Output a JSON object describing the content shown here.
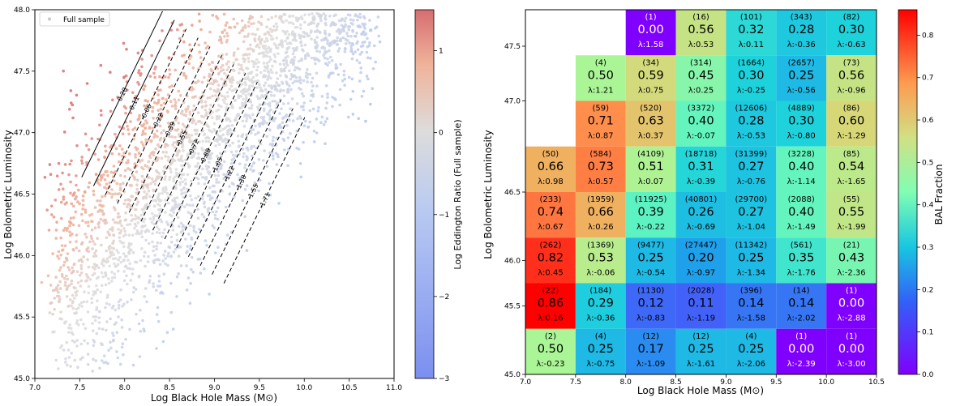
{
  "chart_data": [
    {
      "type": "scatter",
      "title": "",
      "xlabel": "Log Black Hole Mass (M⊙)",
      "ylabel": "Log Bolometric Luminosity",
      "xlim": [
        7.0,
        11.0
      ],
      "ylim": [
        45.0,
        48.0
      ],
      "xticks": [
        "7.0",
        "7.5",
        "8.0",
        "8.5",
        "9.0",
        "9.5",
        "10.0",
        "10.5",
        "11.0"
      ],
      "yticks": [
        "45.0",
        "45.5",
        "46.0",
        "46.5",
        "47.0",
        "47.5",
        "48.0"
      ],
      "legend": {
        "label": "Full sample",
        "position": "top-left"
      },
      "colorbar": {
        "label": "Log Eddington Ratio (Full sample)",
        "range": [
          -3,
          1.5
        ],
        "ticks": [
          "1",
          "0",
          "−1",
          "−2",
          "−3"
        ],
        "cmap": "coolwarm"
      },
      "contour_labels": [
        "0.28",
        "0.11",
        "-0.06",
        "-0.22",
        "-0.39",
        "-0.55",
        "-0.72",
        "-0.88",
        "-1.05",
        "-1.22",
        "-1.38",
        "-1.55",
        "-1.71"
      ]
    },
    {
      "type": "heatmap",
      "title": "",
      "xlabel": "Log Black Hole Mass (M⊙)",
      "ylabel": "Log Bolometric Luminosity",
      "xlim": [
        7.0,
        10.5
      ],
      "ylim": [
        45.0,
        47.75
      ],
      "xticks": [
        "7.0",
        "7.5",
        "8.0",
        "8.5",
        "9.0",
        "9.5",
        "10.0",
        "10.5"
      ],
      "yticks": [
        "45.0",
        "45.5",
        "46.0",
        "46.5",
        "47.0",
        "47.5"
      ],
      "colorbar": {
        "label": "BAL Fraction",
        "range": [
          0,
          0.86
        ],
        "ticks": [
          "0.0",
          "0.1",
          "0.2",
          "0.3",
          "0.4",
          "0.5",
          "0.6",
          "0.7",
          "0.8"
        ],
        "cmap": "rainbow"
      },
      "cells": [
        {
          "x": 8.0,
          "y": 47.5,
          "n": "(1)",
          "frac": "0.00",
          "lam": "λ:1.58"
        },
        {
          "x": 8.5,
          "y": 47.5,
          "n": "(16)",
          "frac": "0.56",
          "lam": "λ:0.53"
        },
        {
          "x": 9.0,
          "y": 47.5,
          "n": "(101)",
          "frac": "0.32",
          "lam": "λ:0.11"
        },
        {
          "x": 9.5,
          "y": 47.5,
          "n": "(343)",
          "frac": "0.28",
          "lam": "λ:-0.36"
        },
        {
          "x": 10.0,
          "y": 47.5,
          "n": "(82)",
          "frac": "0.30",
          "lam": "λ:-0.63"
        },
        {
          "x": 7.5,
          "y": 47.25,
          "n": "(4)",
          "frac": "0.50",
          "lam": "λ:1.21"
        },
        {
          "x": 8.0,
          "y": 47.25,
          "n": "(34)",
          "frac": "0.59",
          "lam": "λ:0.75"
        },
        {
          "x": 8.5,
          "y": 47.25,
          "n": "(314)",
          "frac": "0.45",
          "lam": "λ:0.25"
        },
        {
          "x": 9.0,
          "y": 47.25,
          "n": "(1664)",
          "frac": "0.30",
          "lam": "λ:-0.25"
        },
        {
          "x": 9.5,
          "y": 47.25,
          "n": "(2657)",
          "frac": "0.25",
          "lam": "λ:-0.56"
        },
        {
          "x": 10.0,
          "y": 47.25,
          "n": "(73)",
          "frac": "0.56",
          "lam": "λ:-0.96"
        },
        {
          "x": 7.5,
          "y": 47.0,
          "n": "(59)",
          "frac": "0.71",
          "lam": "λ:0.87"
        },
        {
          "x": 8.0,
          "y": 47.0,
          "n": "(520)",
          "frac": "0.63",
          "lam": "λ:0.37"
        },
        {
          "x": 8.5,
          "y": 47.0,
          "n": "(3372)",
          "frac": "0.40",
          "lam": "λ:-0.07"
        },
        {
          "x": 9.0,
          "y": 47.0,
          "n": "(12606)",
          "frac": "0.28",
          "lam": "λ:-0.53"
        },
        {
          "x": 9.5,
          "y": 47.0,
          "n": "(4889)",
          "frac": "0.30",
          "lam": "λ:-0.80"
        },
        {
          "x": 10.0,
          "y": 47.0,
          "n": "(86)",
          "frac": "0.60",
          "lam": "λ:-1.29"
        },
        {
          "x": 7.0,
          "y": 46.75,
          "n": "(50)",
          "frac": "0.66",
          "lam": "λ:0.98"
        },
        {
          "x": 7.5,
          "y": 46.75,
          "n": "(584)",
          "frac": "0.73",
          "lam": "λ:0.57"
        },
        {
          "x": 8.0,
          "y": 46.75,
          "n": "(4109)",
          "frac": "0.51",
          "lam": "λ:0.07"
        },
        {
          "x": 8.5,
          "y": 46.75,
          "n": "(18718)",
          "frac": "0.31",
          "lam": "λ:-0.39"
        },
        {
          "x": 9.0,
          "y": 46.75,
          "n": "(31399)",
          "frac": "0.27",
          "lam": "λ:-0.76"
        },
        {
          "x": 9.5,
          "y": 46.75,
          "n": "(3228)",
          "frac": "0.40",
          "lam": "λ:-1.14"
        },
        {
          "x": 10.0,
          "y": 46.75,
          "n": "(85)",
          "frac": "0.54",
          "lam": "λ:-1.65"
        },
        {
          "x": 7.0,
          "y": 46.5,
          "n": "(233)",
          "frac": "0.74",
          "lam": "λ:0.67"
        },
        {
          "x": 7.5,
          "y": 46.5,
          "n": "(1959)",
          "frac": "0.66",
          "lam": "λ:0.26"
        },
        {
          "x": 8.0,
          "y": 46.5,
          "n": "(11925)",
          "frac": "0.39",
          "lam": "λ:-0.22"
        },
        {
          "x": 8.5,
          "y": 46.5,
          "n": "(40801)",
          "frac": "0.26",
          "lam": "λ:-0.69"
        },
        {
          "x": 9.0,
          "y": 46.5,
          "n": "(29700)",
          "frac": "0.27",
          "lam": "λ:-1.04"
        },
        {
          "x": 9.5,
          "y": 46.5,
          "n": "(2088)",
          "frac": "0.40",
          "lam": "λ:-1.49"
        },
        {
          "x": 10.0,
          "y": 46.5,
          "n": "(55)",
          "frac": "0.55",
          "lam": "λ:-1.99"
        },
        {
          "x": 7.0,
          "y": 46.0,
          "n": "(262)",
          "frac": "0.82",
          "lam": "λ:0.45"
        },
        {
          "x": 7.5,
          "y": 46.0,
          "n": "(1369)",
          "frac": "0.53",
          "lam": "λ:-0.06"
        },
        {
          "x": 8.0,
          "y": 46.0,
          "n": "(9477)",
          "frac": "0.25",
          "lam": "λ:-0.54"
        },
        {
          "x": 8.5,
          "y": 46.0,
          "n": "(27447)",
          "frac": "0.20",
          "lam": "λ:-0.97"
        },
        {
          "x": 9.0,
          "y": 46.0,
          "n": "(11342)",
          "frac": "0.25",
          "lam": "λ:-1.34"
        },
        {
          "x": 9.5,
          "y": 46.0,
          "n": "(561)",
          "frac": "0.35",
          "lam": "λ:-1.76"
        },
        {
          "x": 10.0,
          "y": 46.0,
          "n": "(21)",
          "frac": "0.43",
          "lam": "λ:-2.36"
        },
        {
          "x": 7.0,
          "y": 45.5,
          "n": "(22)",
          "frac": "0.86",
          "lam": "λ:0.16"
        },
        {
          "x": 7.5,
          "y": 45.5,
          "n": "(184)",
          "frac": "0.29",
          "lam": "λ:-0.36"
        },
        {
          "x": 8.0,
          "y": 45.5,
          "n": "(1130)",
          "frac": "0.12",
          "lam": "λ:-0.83"
        },
        {
          "x": 8.5,
          "y": 45.5,
          "n": "(2028)",
          "frac": "0.11",
          "lam": "λ:-1.19"
        },
        {
          "x": 9.0,
          "y": 45.5,
          "n": "(396)",
          "frac": "0.14",
          "lam": "λ:-1.58"
        },
        {
          "x": 9.5,
          "y": 45.5,
          "n": "(14)",
          "frac": "0.14",
          "lam": "λ:-2.02"
        },
        {
          "x": 10.0,
          "y": 45.5,
          "n": "(1)",
          "frac": "0.00",
          "lam": "λ:-2.88"
        },
        {
          "x": 7.0,
          "y": 45.0,
          "n": "(2)",
          "frac": "0.50",
          "lam": "λ:-0.23"
        },
        {
          "x": 7.5,
          "y": 45.0,
          "n": "(4)",
          "frac": "0.25",
          "lam": "λ:-0.75"
        },
        {
          "x": 8.0,
          "y": 45.0,
          "n": "(12)",
          "frac": "0.17",
          "lam": "λ:-1.09"
        },
        {
          "x": 8.5,
          "y": 45.0,
          "n": "(12)",
          "frac": "0.25",
          "lam": "λ:-1.61"
        },
        {
          "x": 9.0,
          "y": 45.0,
          "n": "(4)",
          "frac": "0.25",
          "lam": "λ:-2.06"
        },
        {
          "x": 9.5,
          "y": 45.0,
          "n": "(1)",
          "frac": "0.00",
          "lam": "λ:-2.39"
        },
        {
          "x": 10.0,
          "y": 45.0,
          "n": "(1)",
          "frac": "0.00",
          "lam": "λ:-3.00"
        }
      ]
    }
  ]
}
